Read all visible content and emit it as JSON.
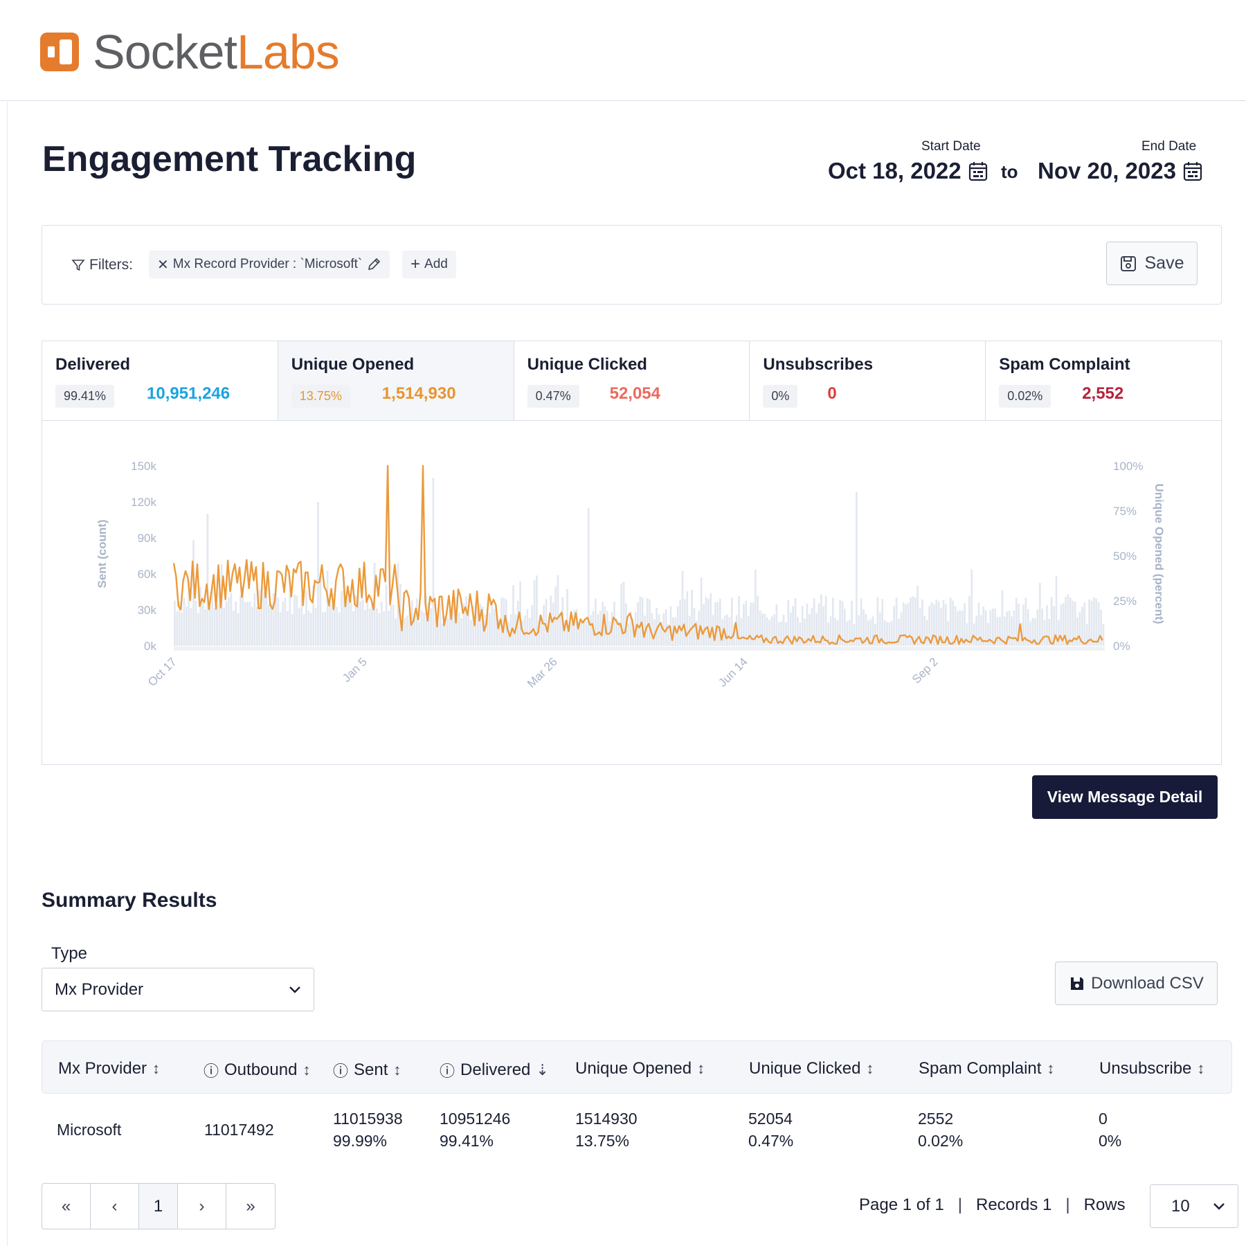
{
  "brand": {
    "part1": "Socket",
    "part2": "Labs",
    "mark_color": "#e57b2c"
  },
  "page": {
    "title": "Engagement Tracking"
  },
  "dates": {
    "start_label": "Start Date",
    "start_value": "Oct 18, 2022",
    "to": "to",
    "end_label": "End Date",
    "end_value": "Nov 20, 2023"
  },
  "filters": {
    "label": "Filters:",
    "chip": "Mx Record Provider : `Microsoft`",
    "add": "Add",
    "save": "Save"
  },
  "metrics": [
    {
      "name": "Delivered",
      "pct": "99.41%",
      "value": "10,951,246",
      "color": "#1aa3e0"
    },
    {
      "name": "Unique Opened",
      "pct": "13.75%",
      "value": "1,514,930",
      "color": "#e8952f"
    },
    {
      "name": "Unique Clicked",
      "pct": "0.47%",
      "value": "52,054",
      "color": "#ec6a5c"
    },
    {
      "name": "Unsubscribes",
      "pct": "0%",
      "value": "0",
      "color": "#e23b3b"
    },
    {
      "name": "Spam Complaint",
      "pct": "0.02%",
      "value": "2,552",
      "color": "#b5233c"
    }
  ],
  "chart_data": {
    "type": "bar",
    "xlabel": "",
    "ylabel": "Sent (count)",
    "y2label": "Unique Opened (percent)",
    "ylim": [
      0,
      150000
    ],
    "y2lim": [
      0,
      100
    ],
    "yticks": [
      "150k",
      "120k",
      "90k",
      "60k",
      "30k",
      "0k"
    ],
    "y2ticks": [
      "100%",
      "75%",
      "50%",
      "25%",
      "0%"
    ],
    "xticks": [
      "Oct 17",
      "Jan 5",
      "Mar 26",
      "Jun 14",
      "Sep 2"
    ],
    "bar_color": "#e3e8f0",
    "line_color": "#eb9a3c",
    "series": [
      {
        "name": "Sent (count)",
        "kind": "bar",
        "approx_range": [
          18000,
          40000
        ],
        "peaks": [
          140000,
          120000,
          115000,
          128000
        ]
      },
      {
        "name": "Unique Opened (percent)",
        "kind": "line",
        "approx_range": [
          1,
          45
        ],
        "peaks": [
          100,
          100
        ]
      }
    ]
  },
  "actions": {
    "view_detail": "View Message Detail"
  },
  "summary": {
    "title": "Summary Results",
    "type_label": "Type",
    "type_value": "Mx Provider",
    "download": "Download CSV",
    "columns": [
      "Mx Provider",
      "Outbound",
      "Sent",
      "Delivered",
      "Unique Opened",
      "Unique Clicked",
      "Spam Complaint",
      "Unsubscribe"
    ],
    "row": {
      "provider": "Microsoft",
      "outbound": "11017492",
      "sent": "11015938",
      "sent_pct": "99.99%",
      "delivered": "10951246",
      "delivered_pct": "99.41%",
      "opened": "1514930",
      "opened_pct": "13.75%",
      "clicked": "52054",
      "clicked_pct": "0.47%",
      "spam": "2552",
      "spam_pct": "0.02%",
      "unsub": "0",
      "unsub_pct": "0%"
    }
  },
  "pagination": {
    "first": "«",
    "prev": "‹",
    "current": "1",
    "next": "›",
    "last": "»",
    "page_info": "Page 1 of 1",
    "records": "Records 1",
    "rows_label": "Rows",
    "rows_value": "10"
  }
}
